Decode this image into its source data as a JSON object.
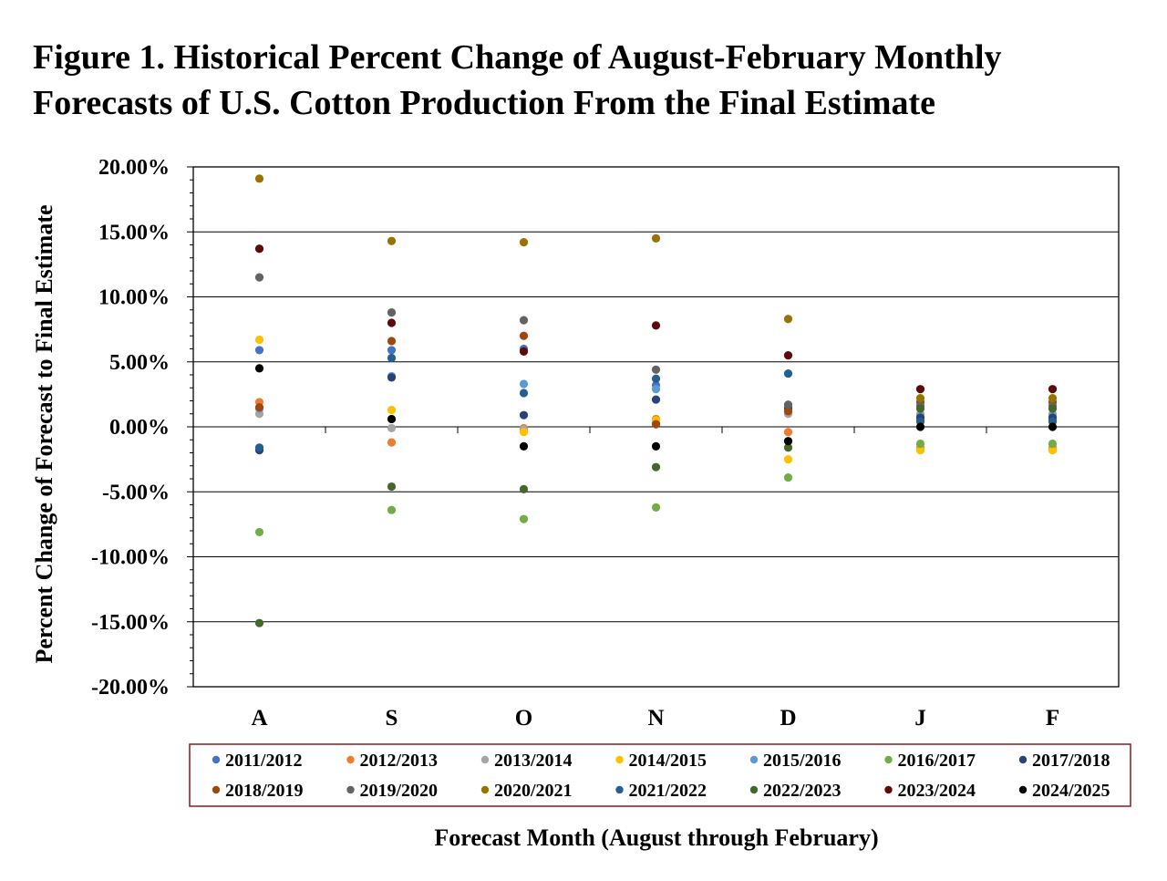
{
  "title": {
    "line1": "Figure 1. Historical Percent Change of August-February Monthly",
    "line2": "Forecasts of U.S. Cotton Production From the Final Estimate"
  },
  "chart_data": {
    "type": "scatter",
    "title": "Figure 1. Historical Percent Change of August-February Monthly Forecasts of U.S. Cotton Production From the Final Estimate",
    "xlabel": "Forecast Month (August through February)",
    "ylabel": "Percent Change of Forecast to Final Estimate",
    "categories": [
      "A",
      "S",
      "O",
      "N",
      "D",
      "J",
      "F"
    ],
    "ylim": [
      -20,
      20
    ],
    "yticks": [
      20,
      15,
      10,
      5,
      0,
      -5,
      -10,
      -15,
      -20
    ],
    "ytick_labels": [
      "20.00%",
      "15.00%",
      "10.00%",
      "5.00%",
      "0.00%",
      "-5.00%",
      "-10.00%",
      "-15.00%",
      "-20.00%"
    ],
    "grid": true,
    "legend_position": "bottom",
    "series": [
      {
        "name": "2011/2012",
        "color": "#4472C4",
        "values": [
          5.9,
          5.9,
          6.0,
          3.2,
          1.5,
          0.5,
          0.5
        ]
      },
      {
        "name": "2012/2013",
        "color": "#ED7D31",
        "values": [
          1.9,
          -1.2,
          -0.1,
          0.6,
          -0.4,
          -1.6,
          -1.6
        ]
      },
      {
        "name": "2013/2014",
        "color": "#A5A5A5",
        "values": [
          1.0,
          -0.1,
          -0.2,
          0.3,
          1.0,
          1.0,
          1.0
        ]
      },
      {
        "name": "2014/2015",
        "color": "#FFC000",
        "values": [
          6.7,
          1.3,
          -0.4,
          0.5,
          -2.5,
          -1.8,
          -1.8
        ]
      },
      {
        "name": "2015/2016",
        "color": "#5B9BD5",
        "values": [
          1.4,
          3.9,
          3.3,
          2.9,
          1.5,
          0.8,
          0.8
        ]
      },
      {
        "name": "2016/2017",
        "color": "#70AD47",
        "values": [
          -8.1,
          -6.4,
          -7.1,
          -6.2,
          -3.9,
          -1.3,
          -1.3
        ]
      },
      {
        "name": "2017/2018",
        "color": "#264478",
        "values": [
          -1.8,
          3.8,
          0.9,
          2.1,
          1.4,
          0.7,
          0.7
        ]
      },
      {
        "name": "2018/2019",
        "color": "#9E480E",
        "values": [
          1.5,
          6.6,
          7.0,
          0.2,
          1.2,
          1.9,
          1.9
        ]
      },
      {
        "name": "2019/2020",
        "color": "#636363",
        "values": [
          11.5,
          8.8,
          8.2,
          4.4,
          1.7,
          1.6,
          1.6
        ]
      },
      {
        "name": "2020/2021",
        "color": "#997300",
        "values": [
          19.1,
          14.3,
          14.2,
          14.5,
          8.3,
          2.2,
          2.2
        ]
      },
      {
        "name": "2021/2022",
        "color": "#255E91",
        "values": [
          -1.6,
          5.3,
          2.6,
          3.7,
          4.1,
          0.4,
          0.4
        ]
      },
      {
        "name": "2022/2023",
        "color": "#43682B",
        "values": [
          -15.1,
          -4.6,
          -4.8,
          -3.1,
          -1.6,
          1.4,
          1.4
        ]
      },
      {
        "name": "2023/2024",
        "color": "#5C0A0A",
        "values": [
          13.7,
          8.0,
          5.8,
          7.8,
          5.5,
          2.9,
          2.9
        ]
      },
      {
        "name": "2024/2025",
        "color": "#000000",
        "values": [
          4.5,
          0.6,
          -1.5,
          -1.5,
          -1.1,
          0.0,
          0.0
        ]
      }
    ]
  }
}
